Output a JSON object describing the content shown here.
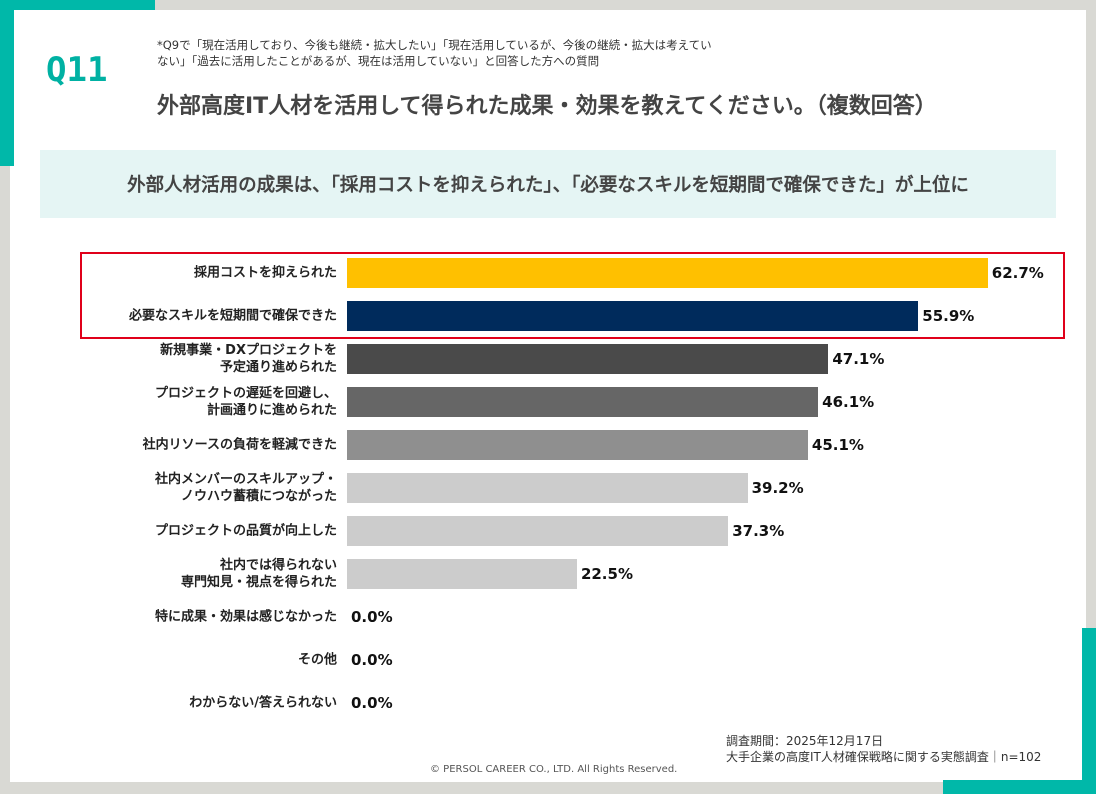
{
  "question_no": "Q11",
  "note": "*Q9で「現在活用しており、今後も継続・拡大したい」「現在活用しているが、今後の継続・拡大は考えていない」「過去に活用したことがあるが、現在は活用していない」と回答した方への質問",
  "title": "外部高度IT人材を活用して得られた成果・効果を教えてください。（複数回答）",
  "banner": "外部人材活用の成果は、「採用コストを抑えられた」、「必要なスキルを短期間で確保できた」が上位に",
  "footer": {
    "period": "調査期間：2025年12月17日",
    "survey": "大手企業の高度IT人材確保戦略に関する実態調査｜n=102",
    "copyright": "© PERSOL CAREER CO., LTD. All Rights Reserved."
  },
  "chart_data": {
    "type": "bar",
    "orientation": "horizontal",
    "unit": "%",
    "categories": [
      "採用コストを抑えられた",
      "必要なスキルを短期間で確保できた",
      "新規事業・DXプロジェクトを\n予定通り進められた",
      "プロジェクトの遅延を回避し、\n計画通りに進められた",
      "社内リソースの負荷を軽減できた",
      "社内メンバーのスキルアップ・\nノウハウ蓄積につながった",
      "プロジェクトの品質が向上した",
      "社内では得られない\n専門知見・視点を得られた",
      "特に成果・効果は感じなかった",
      "その他",
      "わからない/答えられない"
    ],
    "values": [
      62.7,
      55.9,
      47.1,
      46.1,
      45.1,
      39.2,
      37.3,
      22.5,
      0.0,
      0.0,
      0.0
    ],
    "labels": [
      "62.7%",
      "55.9%",
      "47.1%",
      "46.1%",
      "45.1%",
      "39.2%",
      "37.3%",
      "22.5%",
      "0.0%",
      "0.0%",
      "0.0%"
    ],
    "colors": [
      "#ffc000",
      "#002b5c",
      "#4a4a4a",
      "#666666",
      "#8f8f8f",
      "#cccccc",
      "#cccccc",
      "#cccccc",
      "#cccccc",
      "#cccccc",
      "#cccccc"
    ],
    "highlighted": [
      0,
      1
    ]
  }
}
